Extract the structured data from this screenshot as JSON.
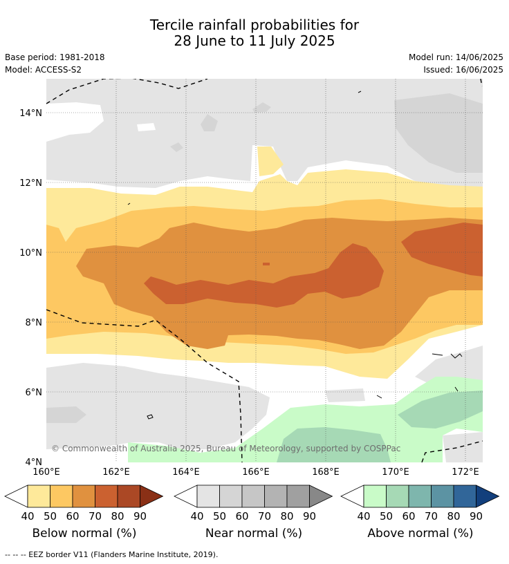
{
  "header": {
    "title_line1": "Tercile rainfall probabilities for",
    "title_line2": "28 June to 11 July 2025",
    "base_period": "Base period: 1981-2018",
    "model": "Model: ACCESS-S2",
    "model_run": "Model run: 14/06/2025",
    "issued": "Issued: 16/06/2025"
  },
  "map": {
    "lat_labels": [
      "14°N",
      "12°N",
      "10°N",
      "8°N",
      "6°N",
      "4°N"
    ],
    "lon_labels": [
      "160°E",
      "162°E",
      "164°E",
      "166°E",
      "168°E",
      "170°E",
      "172°E"
    ],
    "copyright": "© Commonwealth of Australia 2025, Bureau of Meteorology, supported by COSPPac",
    "colors": {
      "below": [
        "#fee99a",
        "#fdc862",
        "#e0913f",
        "#cb6130",
        "#ab4825",
        "#8a3016"
      ],
      "near": [
        "#e4e4e4",
        "#d5d5d5",
        "#c6c6c6",
        "#b3b3b3",
        "#a0a0a0",
        "#888888"
      ],
      "above": [
        "#c9fbc8",
        "#a6d9b5",
        "#7eb6ad",
        "#5c93a3",
        "#316699",
        "#123f7c"
      ]
    }
  },
  "legend": {
    "ticks": [
      "40",
      "50",
      "60",
      "70",
      "80",
      "90"
    ],
    "below_label": "Below normal (%)",
    "near_label": "Near normal (%)",
    "above_label": "Above normal (%)"
  },
  "footer": {
    "eez_note": "--  --  -- EEZ border V11 (Flanders Marine Institute, 2019)."
  }
}
